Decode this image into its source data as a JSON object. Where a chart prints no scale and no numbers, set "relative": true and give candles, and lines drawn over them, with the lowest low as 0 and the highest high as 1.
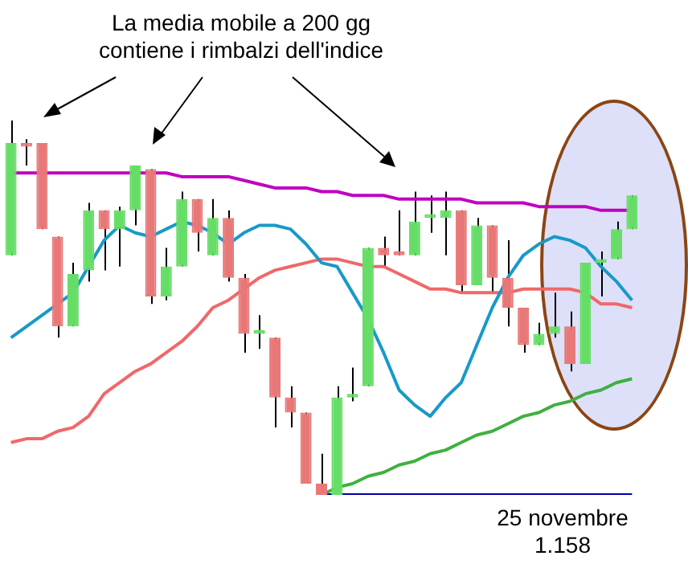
{
  "chart_data": {
    "type": "candlestick",
    "relative": true,
    "categories": [
      null,
      null,
      null,
      null,
      null,
      null,
      null,
      null,
      null,
      null,
      null,
      null,
      null,
      null,
      null,
      null,
      null,
      null,
      null,
      null,
      null,
      null,
      null,
      null,
      null,
      null,
      null,
      null,
      null,
      null,
      null,
      null,
      null,
      null,
      null,
      null,
      null,
      null,
      null,
      null,
      null
    ],
    "ohlc": [
      [
        0.64,
        1.0,
        0.64,
        0.94
      ],
      [
        0.94,
        0.95,
        0.88,
        0.93
      ],
      [
        0.94,
        0.94,
        0.71,
        0.71
      ],
      [
        0.69,
        0.69,
        0.42,
        0.45
      ],
      [
        0.45,
        0.62,
        0.45,
        0.59
      ],
      [
        0.6,
        0.78,
        0.57,
        0.76
      ],
      [
        0.76,
        0.76,
        0.6,
        0.71
      ],
      [
        0.71,
        0.77,
        0.61,
        0.76
      ],
      [
        0.76,
        0.88,
        0.72,
        0.88
      ],
      [
        0.87,
        0.87,
        0.51,
        0.53
      ],
      [
        0.53,
        0.66,
        0.52,
        0.61
      ],
      [
        0.61,
        0.81,
        0.61,
        0.79
      ],
      [
        0.79,
        0.79,
        0.65,
        0.7
      ],
      [
        0.64,
        0.79,
        0.64,
        0.74
      ],
      [
        0.74,
        0.76,
        0.57,
        0.58
      ],
      [
        0.58,
        0.59,
        0.38,
        0.43
      ],
      [
        0.43,
        0.48,
        0.39,
        0.44
      ],
      [
        0.42,
        0.42,
        0.18,
        0.26
      ],
      [
        0.26,
        0.29,
        0.18,
        0.22
      ],
      [
        0.22,
        0.22,
        0.03,
        0.03
      ],
      [
        0.03,
        0.11,
        0,
        0.0
      ],
      [
        0,
        0.29,
        0,
        0.26
      ],
      [
        0.26,
        0.34,
        0.25,
        0.27
      ],
      [
        0.29,
        0.66,
        0.29,
        0.66
      ],
      [
        0.66,
        0.69,
        0.61,
        0.64
      ],
      [
        0.65,
        0.76,
        0.64,
        0.64
      ],
      [
        0.64,
        0.81,
        0.64,
        0.73
      ],
      [
        0.74,
        0.8,
        0.7,
        0.75
      ],
      [
        0.74,
        0.81,
        0.64,
        0.76
      ],
      [
        0.76,
        0.76,
        0.54,
        0.56
      ],
      [
        0.56,
        0.74,
        0.56,
        0.72
      ],
      [
        0.72,
        0.72,
        0.54,
        0.58
      ],
      [
        0.58,
        0.68,
        0.45,
        0.5
      ],
      [
        0.5,
        0.5,
        0.38,
        0.4
      ],
      [
        0.4,
        0.46,
        0.4,
        0.43
      ],
      [
        0.43,
        0.54,
        0.42,
        0.45
      ],
      [
        0.45,
        0.49,
        0.33,
        0.35
      ],
      [
        0.35,
        0.62,
        0.35,
        0.62
      ],
      [
        0.62,
        0.65,
        0.53,
        0.63
      ],
      [
        0.63,
        0.73,
        0.63,
        0.71
      ],
      [
        0.71,
        0.8,
        0.71,
        0.8
      ]
    ],
    "colors": [
      "#66dd66",
      "#e87878",
      "#e87878",
      "#e87878",
      "#66dd66",
      "#66dd66",
      "#e87878",
      "#66dd66",
      "#66dd66",
      "#e87878",
      "#66dd66",
      "#66dd66",
      "#e87878",
      "#66dd66",
      "#e87878",
      "#e87878",
      "#66dd66",
      "#e87878",
      "#e87878",
      "#e87878",
      "#e87878",
      "#66dd66",
      "#66dd66",
      "#66dd66",
      "#e87878",
      "#e87878",
      "#66dd66",
      "#66dd66",
      "#66dd66",
      "#e87878",
      "#66dd66",
      "#e87878",
      "#e87878",
      "#e87878",
      "#66dd66",
      "#66dd66",
      "#e87878",
      "#66dd66",
      "#66dd66",
      "#66dd66",
      "#66dd66"
    ],
    "series": [
      {
        "type": "line",
        "color": "#c000c0",
        "values": [
          0.86,
          0.86,
          0.86,
          0.86,
          0.86,
          0.86,
          0.86,
          0.86,
          0.86,
          0.86,
          0.86,
          0.85,
          0.85,
          0.85,
          0.85,
          0.84,
          0.83,
          0.82,
          0.82,
          0.82,
          0.81,
          0.81,
          0.8,
          0.8,
          0.8,
          0.79,
          0.79,
          0.79,
          0.79,
          0.79,
          0.78,
          0.78,
          0.78,
          0.78,
          0.77,
          0.77,
          0.77,
          0.77,
          0.76,
          0.76,
          0.76
        ]
      },
      {
        "type": "line",
        "color": "#1899c8",
        "values": [
          0.42,
          0.45,
          0.48,
          0.51,
          0.54,
          0.61,
          0.68,
          0.72,
          0.7,
          0.69,
          0.71,
          0.73,
          0.72,
          0.7,
          0.67,
          0.7,
          0.72,
          0.72,
          0.71,
          0.67,
          0.62,
          0.61,
          0.54,
          0.47,
          0.38,
          0.28,
          0.24,
          0.21,
          0.26,
          0.3,
          0.4,
          0.5,
          0.58,
          0.64,
          0.67,
          0.69,
          0.68,
          0.66,
          0.61,
          0.57,
          0.52
        ]
      },
      {
        "type": "line",
        "color": "#f06868",
        "values": [
          0.14,
          0.15,
          0.15,
          0.17,
          0.18,
          0.21,
          0.27,
          0.3,
          0.33,
          0.35,
          0.38,
          0.41,
          0.45,
          0.5,
          0.52,
          0.55,
          0.58,
          0.6,
          0.61,
          0.62,
          0.63,
          0.63,
          0.62,
          0.61,
          0.61,
          0.59,
          0.57,
          0.55,
          0.55,
          0.54,
          0.54,
          0.54,
          0.54,
          0.55,
          0.55,
          0.55,
          0.55,
          0.54,
          0.51,
          0.51,
          0.5
        ]
      },
      {
        "type": "line",
        "color": "#40b040",
        "values": [
          null,
          null,
          null,
          null,
          null,
          null,
          null,
          null,
          null,
          null,
          null,
          null,
          null,
          null,
          null,
          null,
          null,
          null,
          null,
          null,
          0,
          0.02,
          0.03,
          0.05,
          0.06,
          0.08,
          0.09,
          0.11,
          0.12,
          0.14,
          0.16,
          0.17,
          0.19,
          0.21,
          0.22,
          0.24,
          0.25,
          0.27,
          0.28,
          0.3,
          0.31
        ]
      },
      {
        "type": "line",
        "color": "#0000a0",
        "values": [
          null,
          null,
          null,
          null,
          null,
          null,
          null,
          null,
          null,
          null,
          null,
          null,
          null,
          null,
          null,
          null,
          null,
          null,
          null,
          null,
          0,
          0,
          0,
          0,
          0,
          0,
          0,
          0,
          0,
          0,
          0,
          0,
          0,
          0,
          0,
          0,
          0,
          0,
          0,
          0,
          0
        ]
      }
    ],
    "annotations": [
      "La media mobile a 200 gg\ncontiene i rimbalzi dell'indice",
      "25 novembre\n1.158"
    ],
    "legend": false
  }
}
